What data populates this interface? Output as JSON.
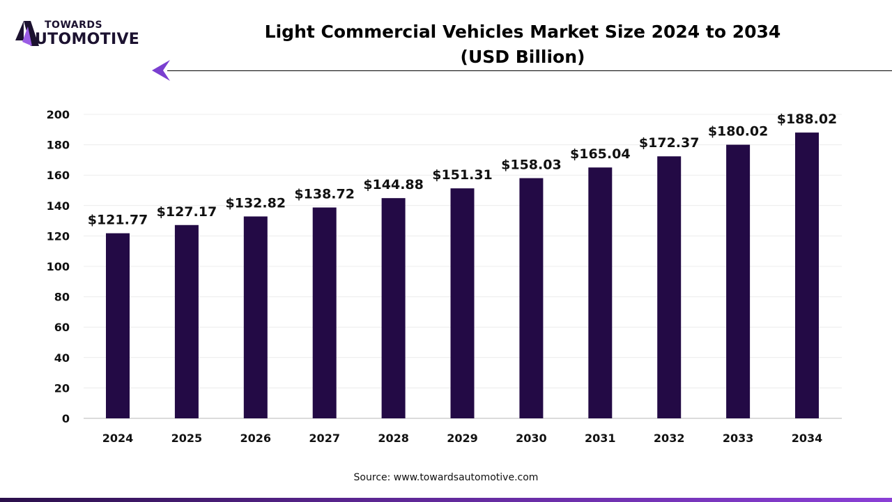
{
  "brand": {
    "line1": "TOWARDS",
    "line2": "UTOMOTIVE",
    "logo_text": "TOWARDS AUTOMOTIVE"
  },
  "source": "Source: www.towardsautomotive.com",
  "chart_data": {
    "type": "bar",
    "title": "Light Commercial Vehicles Market Size 2024 to 2034",
    "subtitle": "(USD Billion)",
    "categories": [
      "2024",
      "2025",
      "2026",
      "2027",
      "2028",
      "2029",
      "2030",
      "2031",
      "2032",
      "2033",
      "2034"
    ],
    "values": [
      121.77,
      127.17,
      132.82,
      138.72,
      144.88,
      151.31,
      158.03,
      165.04,
      172.37,
      180.02,
      188.02
    ],
    "data_labels": [
      "$121.77",
      "$127.17",
      "$132.82",
      "$138.72",
      "$144.88",
      "$151.31",
      "$158.03",
      "$165.04",
      "$172.37",
      "$180.02",
      "$188.02"
    ],
    "yticks": [
      0,
      20,
      40,
      60,
      80,
      100,
      120,
      140,
      160,
      180,
      200
    ],
    "ylim": [
      0,
      200
    ],
    "grid": true,
    "bar_color": "#230a45",
    "xlabel": "",
    "ylabel": ""
  }
}
